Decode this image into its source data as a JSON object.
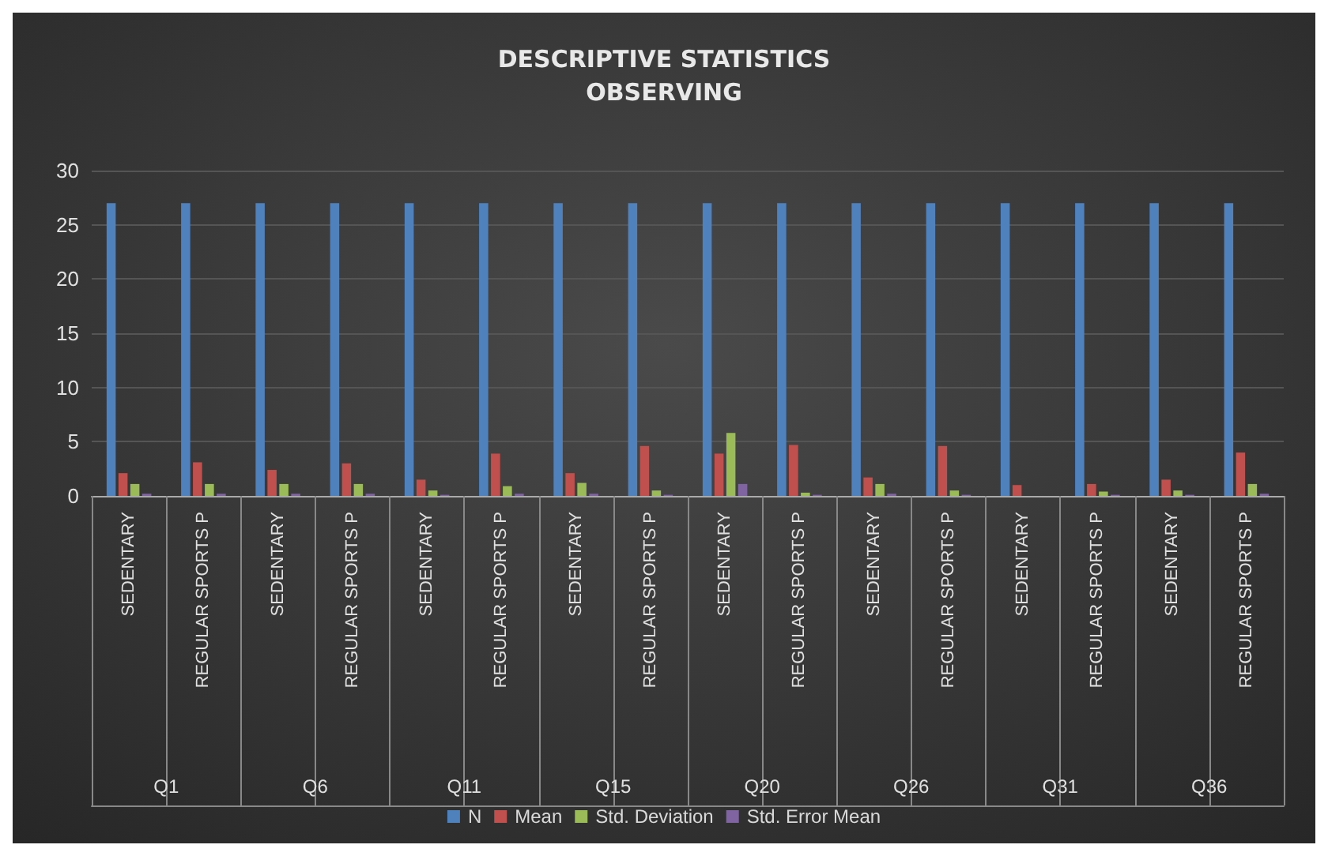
{
  "chart_data": {
    "type": "bar",
    "title": "DESCRIPTIVE STATISTICS\nOBSERVING",
    "categories": [
      "SEDENTARY",
      "REGULAR SPORTS P",
      "SEDENTARY",
      "REGULAR SPORTS P",
      "SEDENTARY",
      "REGULAR SPORTS P",
      "SEDENTARY",
      "REGULAR SPORTS P",
      "SEDENTARY",
      "REGULAR SPORTS P",
      "SEDENTARY",
      "REGULAR SPORTS P",
      "SEDENTARY",
      "REGULAR SPORTS P",
      "SEDENTARY",
      "REGULAR SPORTS P"
    ],
    "annotations": [
      "Q1",
      "Q6",
      "Q11",
      "Q15",
      "Q20",
      "Q26",
      "Q31",
      "Q36"
    ],
    "series": [
      {
        "name": "N",
        "color": "#4f81bd",
        "values": [
          27,
          27,
          27,
          27,
          27,
          27,
          27,
          27,
          27,
          27,
          27,
          27,
          27,
          27,
          27,
          27
        ]
      },
      {
        "name": "Mean",
        "color": "#c0504d",
        "values": [
          2.1,
          3.1,
          2.4,
          3.0,
          1.5,
          3.9,
          2.1,
          4.6,
          3.9,
          4.7,
          1.7,
          4.6,
          1.0,
          1.1,
          1.5,
          4.0
        ]
      },
      {
        "name": "Std. Deviation",
        "color": "#9bbb59",
        "values": [
          1.1,
          1.1,
          1.1,
          1.1,
          0.5,
          0.9,
          1.2,
          0.5,
          5.8,
          0.3,
          1.1,
          0.5,
          0,
          0.4,
          0.5,
          1.1
        ]
      },
      {
        "name": "Std. Error Mean",
        "color": "#8064a2",
        "values": [
          0.2,
          0.2,
          0.2,
          0.2,
          0.1,
          0.2,
          0.2,
          0.1,
          1.1,
          0.1,
          0.2,
          0.1,
          0,
          0.1,
          0.1,
          0.2
        ]
      }
    ],
    "ylim": [
      0,
      30
    ],
    "yticks": [
      0,
      5,
      10,
      15,
      20,
      25,
      30
    ],
    "grid": "y",
    "legend": "bottom"
  }
}
